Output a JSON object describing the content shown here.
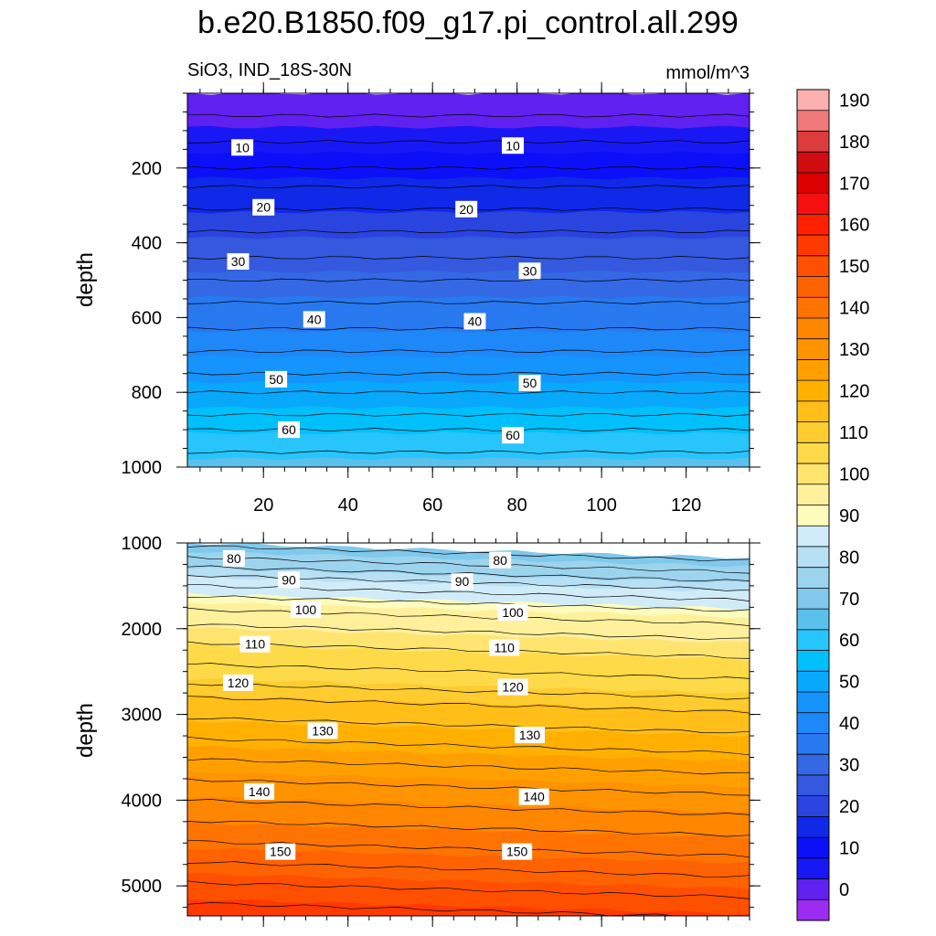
{
  "title": "b.e20.B1850.f09_g17.pi_control.all.299",
  "subtitle_left": "SiO3, IND_18S-30N",
  "subtitle_right": "mmol/m^3",
  "chart_data": [
    {
      "type": "heatmap",
      "panel": "upper",
      "ylabel": "depth",
      "xlabel": "",
      "xlim": [
        2,
        135
      ],
      "ylim": [
        0,
        1000
      ],
      "y_inverted": true,
      "xticks": [
        20,
        40,
        60,
        80,
        100,
        120
      ],
      "yticks": [
        200,
        400,
        600,
        800,
        1000
      ],
      "contour_profile": {
        "depth": [
          0,
          90,
          130,
          200,
          250,
          310,
          370,
          440,
          500,
          560,
          630,
          690,
          750,
          800,
          860,
          900,
          960,
          1000
        ],
        "value": [
          2,
          5,
          8,
          12,
          16,
          20,
          24,
          28,
          32,
          36,
          40,
          44,
          48,
          52,
          56,
          60,
          64,
          66
        ]
      },
      "contour_labels": [
        {
          "text": "10",
          "x": 15,
          "depth": 145
        },
        {
          "text": "10",
          "x": 79,
          "depth": 140
        },
        {
          "text": "20",
          "x": 20,
          "depth": 305
        },
        {
          "text": "20",
          "x": 68,
          "depth": 310
        },
        {
          "text": "30",
          "x": 14,
          "depth": 450
        },
        {
          "text": "30",
          "x": 83,
          "depth": 475
        },
        {
          "text": "40",
          "x": 32,
          "depth": 605
        },
        {
          "text": "40",
          "x": 70,
          "depth": 610
        },
        {
          "text": "50",
          "x": 23,
          "depth": 765
        },
        {
          "text": "50",
          "x": 83,
          "depth": 775
        },
        {
          "text": "60",
          "x": 26,
          "depth": 900
        },
        {
          "text": "60",
          "x": 79,
          "depth": 915
        }
      ]
    },
    {
      "type": "heatmap",
      "panel": "lower",
      "ylabel": "depth",
      "xlabel": "",
      "xlim": [
        2,
        135
      ],
      "ylim": [
        1000,
        5350
      ],
      "y_inverted": true,
      "xticks": [
        20,
        40,
        60,
        80,
        100,
        120
      ],
      "yticks": [
        1000,
        2000,
        3000,
        4000,
        5000
      ],
      "contour_profile": {
        "depth": [
          1000,
          1200,
          1400,
          1650,
          1900,
          2100,
          2350,
          2600,
          2800,
          3100,
          3400,
          3700,
          4000,
          4300,
          4600,
          4900,
          5200,
          5350
        ],
        "value": [
          71,
          77,
          85,
          93,
          99,
          103,
          107,
          111,
          116,
          121,
          126,
          131,
          136,
          141,
          146,
          151,
          156,
          158
        ]
      },
      "contour_labels": [
        {
          "text": "80",
          "x": 13,
          "depth": 1180
        },
        {
          "text": "80",
          "x": 76,
          "depth": 1200
        },
        {
          "text": "90",
          "x": 26,
          "depth": 1430
        },
        {
          "text": "90",
          "x": 67,
          "depth": 1450
        },
        {
          "text": "100",
          "x": 30,
          "depth": 1780
        },
        {
          "text": "100",
          "x": 79,
          "depth": 1810
        },
        {
          "text": "110",
          "x": 18,
          "depth": 2180
        },
        {
          "text": "110",
          "x": 77,
          "depth": 2220
        },
        {
          "text": "120",
          "x": 14,
          "depth": 2630
        },
        {
          "text": "120",
          "x": 79,
          "depth": 2680
        },
        {
          "text": "130",
          "x": 34,
          "depth": 3190
        },
        {
          "text": "130",
          "x": 83,
          "depth": 3240
        },
        {
          "text": "140",
          "x": 19,
          "depth": 3900
        },
        {
          "text": "140",
          "x": 84,
          "depth": 3960
        },
        {
          "text": "150",
          "x": 24,
          "depth": 4600
        },
        {
          "text": "150",
          "x": 80,
          "depth": 4600
        }
      ]
    }
  ],
  "colorbar": {
    "labels": [
      "0",
      "10",
      "20",
      "30",
      "40",
      "50",
      "60",
      "70",
      "80",
      "90",
      "100",
      "110",
      "120",
      "130",
      "140",
      "150",
      "160",
      "170",
      "180",
      "190"
    ],
    "levels": [
      -5,
      0,
      5,
      10,
      15,
      20,
      25,
      30,
      35,
      40,
      45,
      50,
      55,
      60,
      65,
      70,
      75,
      80,
      85,
      90,
      95,
      100,
      105,
      110,
      115,
      120,
      125,
      130,
      135,
      140,
      145,
      150,
      155,
      160,
      165,
      170,
      175,
      180,
      185,
      190,
      195
    ],
    "colors": [
      "#9c2cf0",
      "#6020f0",
      "#1818f4",
      "#0c10f8",
      "#1028e8",
      "#2a44e0",
      "#3458de",
      "#3468e4",
      "#2878f0",
      "#1e88f8",
      "#1494fc",
      "#08a8fc",
      "#00c0fc",
      "#28c4fc",
      "#5cc0ec",
      "#80c8ec",
      "#9cd4ee",
      "#b8e0f4",
      "#d0ecf8",
      "#fefcbc",
      "#fff09c",
      "#ffe470",
      "#ffda48",
      "#ffcc30",
      "#ffbe18",
      "#ffb000",
      "#ffa000",
      "#ff9400",
      "#ff8600",
      "#ff7400",
      "#ff6200",
      "#ff5000",
      "#ff3a00",
      "#ff2000",
      "#f41010",
      "#dc0000",
      "#d00c10",
      "#dc3c3c",
      "#f07878",
      "#fcb0b0"
    ]
  }
}
